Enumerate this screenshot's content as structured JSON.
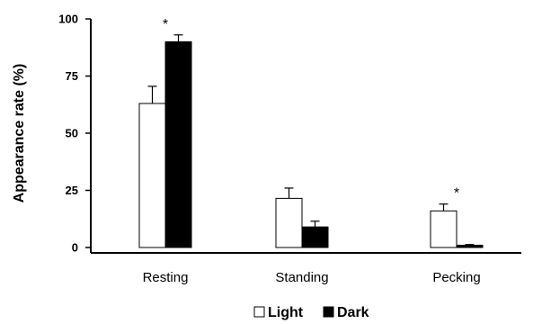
{
  "chart_data": {
    "type": "bar",
    "ylabel": "Appearance rate (%)",
    "ylim": [
      0,
      100
    ],
    "yticks": [
      0,
      25,
      50,
      75,
      100
    ],
    "categories": [
      "Resting",
      "Standing",
      "Pecking"
    ],
    "series": [
      {
        "name": "Light",
        "color": "#ffffff",
        "values": [
          63,
          21.5,
          16
        ],
        "errors": [
          7.5,
          4.5,
          3
        ]
      },
      {
        "name": "Dark",
        "color": "#000000",
        "values": [
          90,
          9,
          1
        ],
        "errors": [
          3,
          2.5,
          0.3
        ]
      }
    ],
    "annotations": [
      {
        "category": "Resting",
        "text": "*"
      },
      {
        "category": "Pecking",
        "text": "*"
      }
    ],
    "legend": "bottom-center",
    "grid": false
  }
}
